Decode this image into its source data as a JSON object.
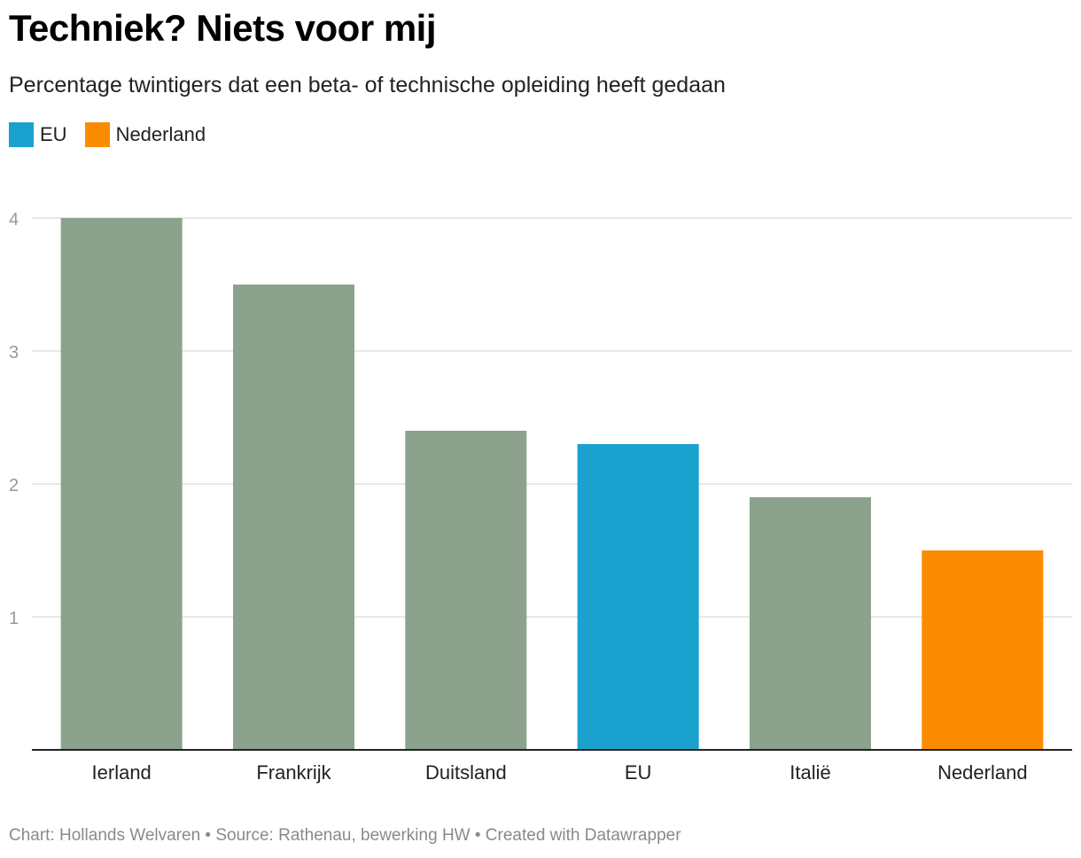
{
  "title": "Techniek? Niets voor mij",
  "subtitle": "Percentage twintigers dat een beta- of technische opleiding heeft gedaan",
  "legend": [
    {
      "label": "EU",
      "color": "#1aa1ce"
    },
    {
      "label": "Nederland",
      "color": "#fb8c00"
    }
  ],
  "footer": "Chart: Hollands Welvaren • Source: Rathenau, bewerking HW • Created with Datawrapper",
  "chart_data": {
    "type": "bar",
    "title": "Techniek? Niets voor mij",
    "subtitle": "Percentage twintigers dat een beta- of technische opleiding heeft gedaan",
    "xlabel": "",
    "ylabel": "",
    "categories": [
      "Ierland",
      "Frankrijk",
      "Duitsland",
      "EU",
      "Italië",
      "Nederland"
    ],
    "values": [
      4.0,
      3.5,
      2.4,
      2.3,
      1.9,
      1.5
    ],
    "bar_colors": [
      "#8ca28c",
      "#8ca28c",
      "#8ca28c",
      "#1aa1ce",
      "#8ca28c",
      "#fb8c00"
    ],
    "ylim": [
      0,
      4
    ],
    "yticks": [
      1,
      2,
      3,
      4
    ],
    "grid": true,
    "legend_position": "top-left"
  }
}
